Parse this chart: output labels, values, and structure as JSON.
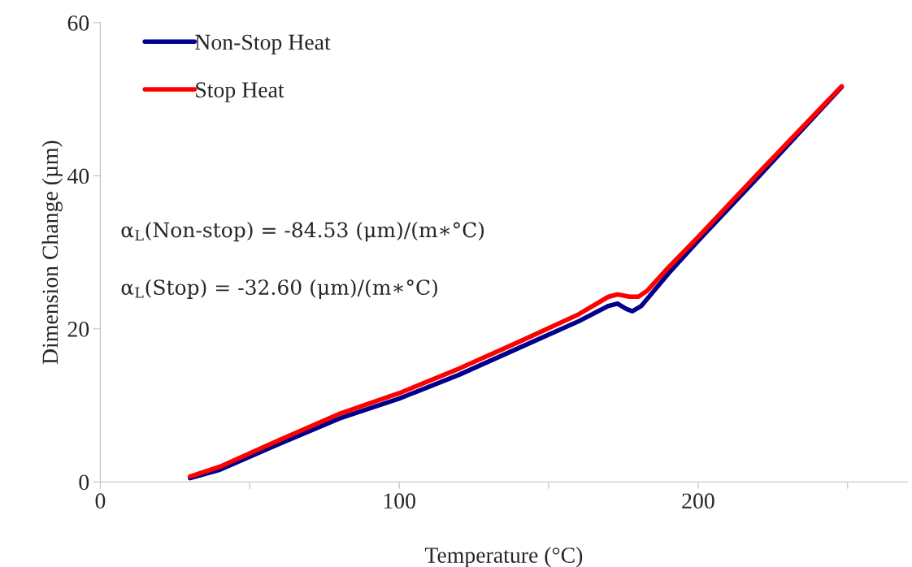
{
  "chart_data": {
    "type": "line",
    "xlabel": "Temperature (°C)",
    "ylabel": "Dimension Change (µm)",
    "xlim": [
      0,
      270
    ],
    "xticks": [
      0,
      {
        "value": 50,
        "label": null
      },
      100,
      {
        "value": 150,
        "label": null
      },
      200,
      {
        "value": 250,
        "label": null
      }
    ],
    "ylim": [
      0,
      60
    ],
    "yticks": [
      0,
      20,
      40,
      60
    ],
    "grid": false,
    "legend": "top left",
    "marker": "none",
    "line_style": "solid",
    "annotations": [
      "α$_{L}$(Non-stop) = -84.53 (μm)/(m∗°C)",
      "α$_{L}$(Stop) = -32.60 (μm)/(m∗°C)"
    ],
    "series": [
      {
        "name": "Non-Stop Heat",
        "color": "#00008b",
        "x": [
          30,
          40,
          60,
          80,
          100,
          120,
          140,
          160,
          170,
          173,
          176,
          178,
          181,
          190,
          200,
          220,
          248
        ],
        "values": [
          0.5,
          1.6,
          5.0,
          8.3,
          10.9,
          14.0,
          17.5,
          21.0,
          23.0,
          23.3,
          22.6,
          22.3,
          23.0,
          27.2,
          31.5,
          39.8,
          51.6
        ]
      },
      {
        "name": "Stop Heat",
        "color": "#ff0000",
        "x": [
          30,
          40,
          60,
          80,
          100,
          120,
          140,
          160,
          170,
          173,
          177,
          180,
          183,
          190,
          200,
          220,
          248
        ],
        "values": [
          0.7,
          2.0,
          5.5,
          8.9,
          11.6,
          14.8,
          18.3,
          21.9,
          24.2,
          24.5,
          24.2,
          24.2,
          25.0,
          28.0,
          32.0,
          40.3,
          51.7
        ]
      }
    ]
  }
}
